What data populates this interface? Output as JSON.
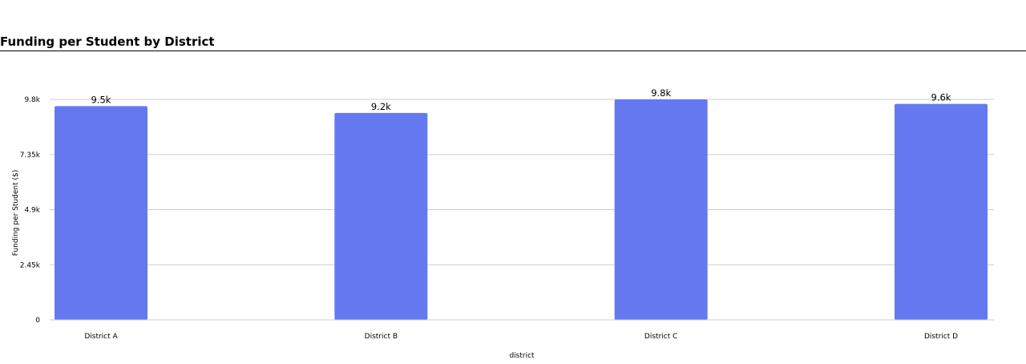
{
  "chart_data": {
    "type": "bar",
    "title": "Funding per Student by District",
    "xlabel": "district",
    "ylabel": "Funding per Student ($)",
    "categories": [
      "District A",
      "District B",
      "District C",
      "District D"
    ],
    "values": [
      9500,
      9200,
      9800,
      9600
    ],
    "data_labels": [
      "9.5k",
      "9.2k",
      "9.8k",
      "9.6k"
    ],
    "ylim": [
      0,
      9800
    ],
    "yticks": [
      0,
      2450,
      4900,
      7350,
      9800
    ],
    "ytick_labels": [
      "0",
      "2.45k",
      "4.9k",
      "7.35k",
      "9.8k"
    ],
    "grid": true,
    "legend": "none",
    "bar_color": "#6479f0"
  }
}
